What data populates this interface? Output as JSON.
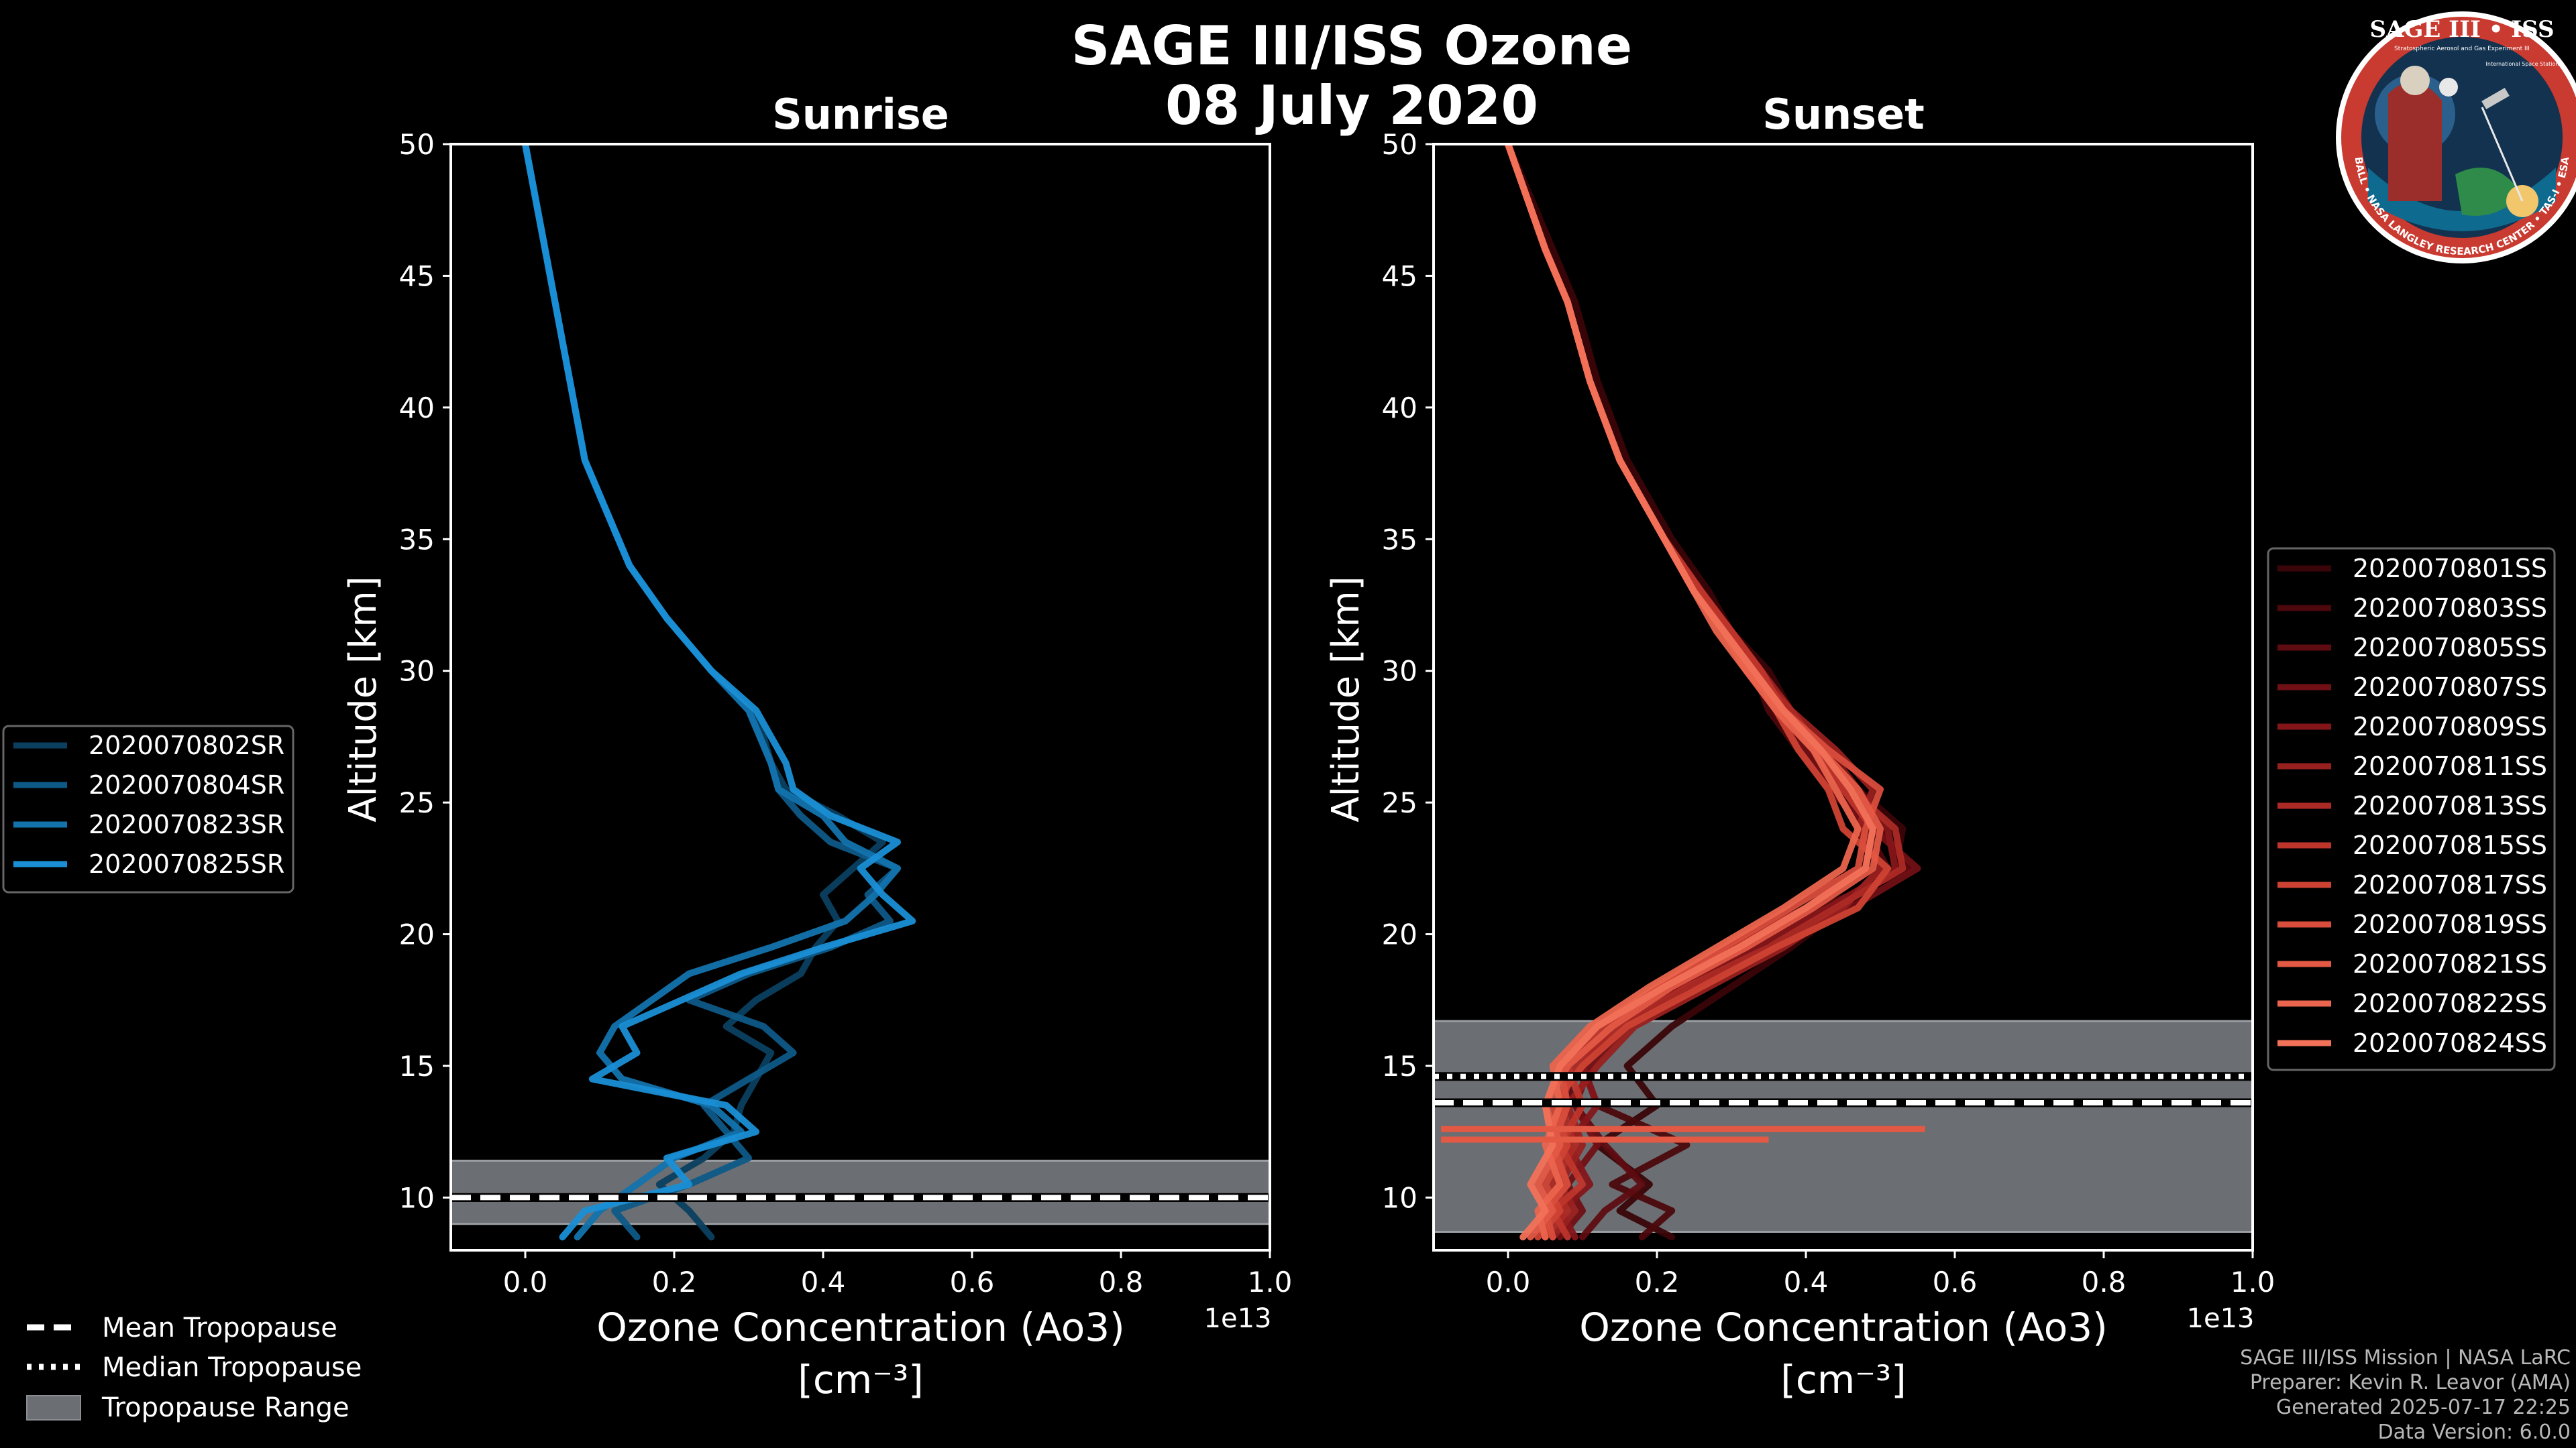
{
  "figure": {
    "title_line1": "SAGE III/ISS Ozone",
    "title_line2": "08 July 2020"
  },
  "badge": {
    "title": "SAGE III • ISS",
    "subtitle": "Stratospheric Aerosol and Gas Experiment III",
    "side": "International Space Station",
    "ring": "BALL • NASA LANGLEY RESEARCH CENTER • TAS-I • ESA"
  },
  "footer": {
    "line1": "SAGE III/ISS Mission | NASA LaRC",
    "line2": "Preparer: Kevin R. Leavor (AMA)",
    "line3": "Generated 2025-07-17 22:25",
    "line4": "Data Version: 6.0.0"
  },
  "tropopause_legend": {
    "mean": "Mean Tropopause",
    "median": "Median Tropopause",
    "range": "Tropopause Range"
  },
  "colors": {
    "background": "#000000",
    "tropo_fill": "#6b6e72",
    "sr_series": [
      "#0b3f60",
      "#0e5a87",
      "#1373ad",
      "#1a8fd6"
    ],
    "ss_series": [
      "#3a0508",
      "#4c080c",
      "#5e0c11",
      "#701015",
      "#84161a",
      "#98201f",
      "#ac2a25",
      "#be352b",
      "#cd4233",
      "#d94d3c",
      "#e35944",
      "#eb644d",
      "#f27159"
    ]
  },
  "chart_data": [
    {
      "type": "line",
      "title": "Sunrise",
      "xlabel": "Ozone Concentration (Ao3)",
      "xunit": "[cm⁻³]",
      "x_offset_label": "1e13",
      "ylabel": "Altitude [km]",
      "xlim": [
        -0.1,
        1.0
      ],
      "ylim": [
        8,
        50
      ],
      "xticks": [
        "0.0",
        "0.2",
        "0.4",
        "0.6",
        "0.8",
        "1.0"
      ],
      "yticks": [
        "10",
        "15",
        "20",
        "25",
        "30",
        "35",
        "40",
        "45",
        "50"
      ],
      "tropopause": {
        "mean": 10.0,
        "median": 10.0,
        "range": [
          9.0,
          11.4
        ]
      },
      "legend_position": "outside-left",
      "series": [
        {
          "name": "2020070802SR",
          "x": [
            0.25,
            0.22,
            0.18,
            0.24,
            0.28,
            0.29,
            0.31,
            0.33,
            0.27,
            0.31,
            0.37,
            0.39,
            0.42,
            0.4,
            0.44,
            0.48,
            0.42,
            0.35,
            0.33,
            0.32,
            0.3,
            0.25,
            0.19,
            0.14,
            0.11,
            0.08,
            0.06,
            0.04,
            0.0
          ],
          "y": [
            8.5,
            9.5,
            10.5,
            11.5,
            12.5,
            13.5,
            14.5,
            15.5,
            16.5,
            17.5,
            18.5,
            19.5,
            20.5,
            21.5,
            22.5,
            23.5,
            24.5,
            25.5,
            26.5,
            27.5,
            28.5,
            30.0,
            32.0,
            34.0,
            36.0,
            38.0,
            41.0,
            44.0,
            50.0
          ]
        },
        {
          "name": "2020070804SR",
          "x": [
            0.15,
            0.12,
            0.22,
            0.3,
            0.27,
            0.24,
            0.3,
            0.36,
            0.32,
            0.22,
            0.3,
            0.41,
            0.49,
            0.46,
            0.5,
            0.41,
            0.37,
            0.34,
            0.33,
            0.3,
            0.25,
            0.19,
            0.14,
            0.11,
            0.08,
            0.06,
            0.04,
            0.0
          ],
          "y": [
            8.5,
            9.5,
            10.5,
            11.5,
            12.5,
            13.5,
            14.5,
            15.5,
            16.5,
            17.5,
            18.5,
            19.5,
            20.5,
            21.5,
            22.5,
            23.5,
            24.5,
            25.5,
            26.5,
            28.5,
            30.0,
            32.0,
            34.0,
            36.0,
            38.0,
            41.0,
            44.0,
            50.0
          ]
        },
        {
          "name": "2020070823SR",
          "x": [
            0.07,
            0.1,
            0.15,
            0.2,
            0.29,
            0.25,
            0.13,
            0.1,
            0.12,
            0.17,
            0.22,
            0.33,
            0.43,
            0.47,
            0.5,
            0.43,
            0.4,
            0.34,
            0.33,
            0.3,
            0.25,
            0.19,
            0.14,
            0.11,
            0.08,
            0.06,
            0.04,
            0.0
          ],
          "y": [
            8.5,
            9.5,
            10.5,
            11.5,
            12.5,
            13.5,
            14.5,
            15.5,
            16.5,
            17.5,
            18.5,
            19.5,
            20.5,
            21.5,
            22.5,
            23.5,
            24.5,
            25.5,
            26.5,
            28.5,
            30.0,
            32.0,
            34.0,
            36.0,
            38.0,
            41.0,
            44.0,
            50.0
          ]
        },
        {
          "name": "2020070825SR",
          "x": [
            0.05,
            0.08,
            0.22,
            0.19,
            0.31,
            0.27,
            0.09,
            0.15,
            0.13,
            0.21,
            0.29,
            0.4,
            0.52,
            0.48,
            0.45,
            0.5,
            0.41,
            0.36,
            0.35,
            0.31,
            0.25,
            0.19,
            0.14,
            0.11,
            0.08,
            0.06,
            0.04,
            0.0
          ],
          "y": [
            8.5,
            9.5,
            10.5,
            11.5,
            12.5,
            13.5,
            14.5,
            15.5,
            16.5,
            17.5,
            18.5,
            19.5,
            20.5,
            21.5,
            22.5,
            23.5,
            24.5,
            25.5,
            26.5,
            28.5,
            30.0,
            32.0,
            34.0,
            36.0,
            38.0,
            41.0,
            44.0,
            50.0
          ]
        }
      ]
    },
    {
      "type": "line",
      "title": "Sunset",
      "xlabel": "Ozone Concentration (Ao3)",
      "xunit": "[cm⁻³]",
      "x_offset_label": "1e13",
      "ylabel": "Altitude [km]",
      "xlim": [
        -0.1,
        1.0
      ],
      "ylim": [
        8,
        50
      ],
      "xticks": [
        "0.0",
        "0.2",
        "0.4",
        "0.6",
        "0.8",
        "1.0"
      ],
      "yticks": [
        "10",
        "15",
        "20",
        "25",
        "30",
        "35",
        "40",
        "45",
        "50"
      ],
      "tropopause": {
        "mean": 13.6,
        "median": 14.6,
        "range": [
          8.7,
          16.7
        ]
      },
      "legend_position": "outside-right",
      "series": [
        {
          "name": "2020070801SS",
          "x": [
            0.22,
            0.15,
            0.19,
            0.12,
            0.2,
            0.16,
            0.22,
            0.3,
            0.38,
            0.45,
            0.52,
            0.53,
            0.47,
            0.42,
            0.38,
            0.35,
            0.3,
            0.27,
            0.22,
            0.16,
            0.12,
            0.09,
            0.06,
            0.0
          ],
          "y": [
            8.5,
            9.5,
            10.5,
            12.0,
            13.5,
            15.0,
            16.5,
            18.0,
            19.5,
            21.0,
            22.5,
            24.0,
            25.5,
            27.0,
            28.5,
            30.0,
            31.5,
            33.0,
            35.0,
            38.0,
            41.0,
            44.0,
            46.0,
            50.0
          ]
        },
        {
          "name": "2020070803SS",
          "x": [
            0.18,
            0.22,
            0.14,
            0.24,
            0.12,
            0.1,
            0.16,
            0.24,
            0.34,
            0.44,
            0.51,
            0.48,
            0.44,
            0.39,
            0.35,
            0.33,
            0.3,
            0.26,
            0.21,
            0.15,
            0.11,
            0.08,
            0.05,
            0.0
          ],
          "y": [
            8.5,
            9.5,
            10.5,
            12.0,
            13.5,
            15.0,
            16.5,
            18.0,
            19.5,
            21.0,
            22.5,
            24.0,
            25.5,
            27.0,
            28.5,
            30.0,
            31.5,
            33.0,
            35.0,
            38.0,
            41.0,
            44.0,
            46.0,
            50.0
          ]
        },
        {
          "name": "2020070805SS",
          "x": [
            0.1,
            0.13,
            0.18,
            0.13,
            0.09,
            0.07,
            0.12,
            0.22,
            0.31,
            0.42,
            0.54,
            0.5,
            0.45,
            0.41,
            0.37,
            0.34,
            0.29,
            0.26,
            0.21,
            0.15,
            0.11,
            0.08,
            0.05,
            0.0
          ],
          "y": [
            8.5,
            9.5,
            10.5,
            12.0,
            13.5,
            15.0,
            16.5,
            18.0,
            19.5,
            21.0,
            22.5,
            24.0,
            25.5,
            27.0,
            28.5,
            30.0,
            31.5,
            33.0,
            35.0,
            38.0,
            41.0,
            44.0,
            46.0,
            50.0
          ]
        },
        {
          "name": "2020070807SS",
          "x": [
            0.07,
            0.1,
            0.08,
            0.12,
            0.09,
            0.11,
            0.16,
            0.25,
            0.36,
            0.46,
            0.55,
            0.49,
            0.43,
            0.4,
            0.36,
            0.32,
            0.29,
            0.25,
            0.21,
            0.15,
            0.11,
            0.08,
            0.05,
            0.0
          ],
          "y": [
            8.5,
            9.5,
            10.5,
            12.0,
            13.5,
            15.0,
            16.5,
            18.0,
            19.5,
            21.0,
            22.5,
            24.0,
            25.5,
            27.0,
            28.5,
            30.0,
            31.5,
            33.0,
            35.0,
            38.0,
            41.0,
            44.0,
            46.0,
            50.0
          ]
        },
        {
          "name": "2020070809SS",
          "x": [
            0.09,
            0.07,
            0.11,
            0.08,
            0.12,
            0.1,
            0.14,
            0.23,
            0.33,
            0.43,
            0.52,
            0.51,
            0.47,
            0.43,
            0.37,
            0.33,
            0.3,
            0.26,
            0.21,
            0.15,
            0.11,
            0.08,
            0.05,
            0.0
          ],
          "y": [
            8.5,
            9.5,
            10.5,
            12.0,
            13.5,
            15.0,
            16.5,
            18.0,
            19.5,
            21.0,
            22.5,
            24.0,
            25.5,
            27.0,
            28.5,
            30.0,
            31.5,
            33.0,
            35.0,
            38.0,
            41.0,
            44.0,
            46.0,
            50.0
          ]
        },
        {
          "name": "2020070811SS",
          "x": [
            0.06,
            0.09,
            0.07,
            0.1,
            0.08,
            0.12,
            0.17,
            0.27,
            0.37,
            0.45,
            0.5,
            0.47,
            0.49,
            0.44,
            0.38,
            0.34,
            0.3,
            0.26,
            0.21,
            0.15,
            0.11,
            0.08,
            0.05,
            0.0
          ],
          "y": [
            8.5,
            9.5,
            10.5,
            12.0,
            13.5,
            15.0,
            16.5,
            18.0,
            19.5,
            21.0,
            22.5,
            24.0,
            25.5,
            27.0,
            28.5,
            30.0,
            31.5,
            33.0,
            35.0,
            38.0,
            41.0,
            44.0,
            46.0,
            50.0
          ]
        },
        {
          "name": "2020070813SS",
          "x": [
            0.05,
            0.08,
            0.06,
            0.09,
            0.07,
            0.09,
            0.15,
            0.24,
            0.35,
            0.44,
            0.53,
            0.52,
            0.46,
            0.42,
            0.38,
            0.33,
            0.29,
            0.26,
            0.21,
            0.15,
            0.11,
            0.08,
            0.05,
            0.0
          ],
          "y": [
            8.5,
            9.5,
            10.5,
            12.0,
            13.5,
            15.0,
            16.5,
            18.0,
            19.5,
            21.0,
            22.5,
            24.0,
            25.5,
            27.0,
            28.5,
            30.0,
            31.5,
            33.0,
            35.0,
            38.0,
            41.0,
            44.0,
            46.0,
            50.0
          ]
        },
        {
          "name": "2020070815SS",
          "x": [
            0.08,
            0.06,
            0.1,
            0.07,
            0.1,
            0.08,
            0.13,
            0.21,
            0.3,
            0.4,
            0.48,
            0.49,
            0.45,
            0.41,
            0.37,
            0.34,
            0.3,
            0.26,
            0.21,
            0.15,
            0.11,
            0.08,
            0.05,
            0.0
          ],
          "y": [
            8.5,
            9.5,
            10.5,
            12.0,
            13.5,
            15.0,
            16.5,
            18.0,
            19.5,
            21.0,
            22.5,
            24.0,
            25.5,
            27.0,
            28.5,
            30.0,
            31.5,
            33.0,
            35.0,
            38.0,
            41.0,
            44.0,
            46.0,
            50.0
          ]
        },
        {
          "name": "2020070817SS",
          "x": [
            0.04,
            0.07,
            0.05,
            0.08,
            0.06,
            0.1,
            0.16,
            0.26,
            0.36,
            0.47,
            0.51,
            0.45,
            0.43,
            0.39,
            0.36,
            0.33,
            0.29,
            0.25,
            0.21,
            0.15,
            0.11,
            0.08,
            0.05,
            0.0
          ],
          "y": [
            8.5,
            9.5,
            10.5,
            12.0,
            13.5,
            15.0,
            16.5,
            18.0,
            19.5,
            21.0,
            22.5,
            24.0,
            25.5,
            27.0,
            28.5,
            30.0,
            31.5,
            33.0,
            35.0,
            38.0,
            41.0,
            44.0,
            46.0,
            50.0
          ]
        },
        {
          "name": "2020070819SS",
          "x": [
            0.06,
            0.05,
            0.08,
            0.06,
            0.08,
            0.07,
            0.12,
            0.2,
            0.29,
            0.38,
            0.47,
            0.48,
            0.5,
            0.43,
            0.37,
            0.33,
            0.29,
            0.25,
            0.21,
            0.15,
            0.11,
            0.08,
            0.05,
            0.0
          ],
          "y": [
            8.5,
            9.5,
            10.5,
            12.0,
            13.5,
            15.0,
            16.5,
            18.0,
            19.5,
            21.0,
            22.5,
            24.0,
            25.5,
            27.0,
            28.5,
            30.0,
            31.5,
            33.0,
            35.0,
            38.0,
            41.0,
            44.0,
            46.0,
            50.0
          ]
        },
        {
          "name": "2020070821SS",
          "x": [
            0.03,
            0.06,
            0.04,
            0.07,
            0.05,
            0.08,
            0.14,
            0.22,
            0.32,
            0.41,
            0.49,
            0.5,
            0.47,
            0.42,
            0.37,
            0.32,
            0.29,
            0.25,
            0.21,
            0.15,
            0.11,
            0.08,
            0.05,
            0.0
          ],
          "y": [
            8.5,
            9.5,
            10.5,
            12.0,
            13.5,
            15.0,
            16.5,
            18.0,
            19.5,
            21.0,
            22.5,
            24.0,
            25.5,
            27.0,
            28.5,
            30.0,
            31.5,
            33.0,
            35.0,
            38.0,
            41.0,
            44.0,
            46.0,
            50.0
          ]
        },
        {
          "name": "2020070822SS",
          "x": [
            0.05,
            0.04,
            0.07,
            0.05,
            0.07,
            0.06,
            0.11,
            0.19,
            0.28,
            0.37,
            0.45,
            0.47,
            0.44,
            0.41,
            0.36,
            0.32,
            0.28,
            0.25,
            0.21,
            0.15,
            0.11,
            0.08,
            0.05,
            0.0
          ],
          "y": [
            8.5,
            9.5,
            10.5,
            12.0,
            13.5,
            15.0,
            16.5,
            18.0,
            19.5,
            21.0,
            22.5,
            24.0,
            25.5,
            27.0,
            28.5,
            30.0,
            31.5,
            33.0,
            35.0,
            38.0,
            41.0,
            44.0,
            46.0,
            50.0
          ]
        },
        {
          "name": "2020070824SS",
          "x": [
            0.02,
            0.05,
            0.03,
            0.06,
            0.05,
            0.07,
            0.12,
            0.21,
            0.31,
            0.4,
            0.48,
            0.49,
            0.46,
            0.42,
            0.37,
            0.33,
            0.29,
            0.25,
            0.21,
            0.15,
            0.11,
            0.08,
            0.05,
            0.0
          ],
          "y": [
            8.5,
            9.5,
            10.5,
            12.0,
            13.5,
            15.0,
            16.5,
            18.0,
            19.5,
            21.0,
            22.5,
            24.0,
            25.5,
            27.0,
            28.5,
            30.0,
            31.5,
            33.0,
            35.0,
            38.0,
            41.0,
            44.0,
            46.0,
            50.0
          ]
        }
      ],
      "spikes": [
        {
          "x0": -0.09,
          "x1": 0.56,
          "y": 12.6
        },
        {
          "x0": -0.09,
          "x1": 0.35,
          "y": 12.2
        }
      ]
    }
  ]
}
